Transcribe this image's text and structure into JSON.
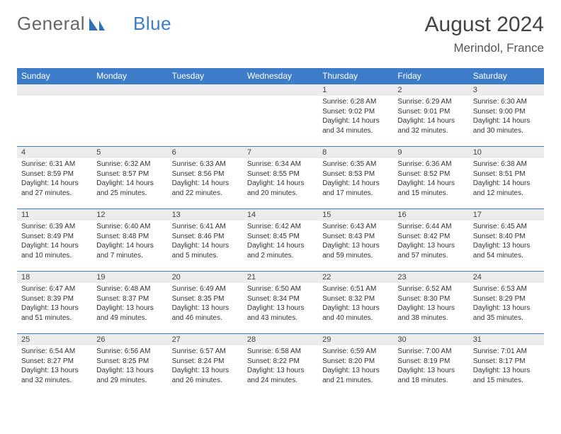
{
  "logo": {
    "text1": "General",
    "text2": "Blue"
  },
  "title": "August 2024",
  "location": "Merindol, France",
  "colors": {
    "accent": "#3d7cc9",
    "band": "#ececec",
    "text": "#333333",
    "bg": "#ffffff"
  },
  "weekdays": [
    "Sunday",
    "Monday",
    "Tuesday",
    "Wednesday",
    "Thursday",
    "Friday",
    "Saturday"
  ],
  "weeks": [
    [
      null,
      null,
      null,
      null,
      {
        "n": "1",
        "sr": "6:28 AM",
        "ss": "9:02 PM",
        "dl": "14 hours and 34 minutes."
      },
      {
        "n": "2",
        "sr": "6:29 AM",
        "ss": "9:01 PM",
        "dl": "14 hours and 32 minutes."
      },
      {
        "n": "3",
        "sr": "6:30 AM",
        "ss": "9:00 PM",
        "dl": "14 hours and 30 minutes."
      }
    ],
    [
      {
        "n": "4",
        "sr": "6:31 AM",
        "ss": "8:59 PM",
        "dl": "14 hours and 27 minutes."
      },
      {
        "n": "5",
        "sr": "6:32 AM",
        "ss": "8:57 PM",
        "dl": "14 hours and 25 minutes."
      },
      {
        "n": "6",
        "sr": "6:33 AM",
        "ss": "8:56 PM",
        "dl": "14 hours and 22 minutes."
      },
      {
        "n": "7",
        "sr": "6:34 AM",
        "ss": "8:55 PM",
        "dl": "14 hours and 20 minutes."
      },
      {
        "n": "8",
        "sr": "6:35 AM",
        "ss": "8:53 PM",
        "dl": "14 hours and 17 minutes."
      },
      {
        "n": "9",
        "sr": "6:36 AM",
        "ss": "8:52 PM",
        "dl": "14 hours and 15 minutes."
      },
      {
        "n": "10",
        "sr": "6:38 AM",
        "ss": "8:51 PM",
        "dl": "14 hours and 12 minutes."
      }
    ],
    [
      {
        "n": "11",
        "sr": "6:39 AM",
        "ss": "8:49 PM",
        "dl": "14 hours and 10 minutes."
      },
      {
        "n": "12",
        "sr": "6:40 AM",
        "ss": "8:48 PM",
        "dl": "14 hours and 7 minutes."
      },
      {
        "n": "13",
        "sr": "6:41 AM",
        "ss": "8:46 PM",
        "dl": "14 hours and 5 minutes."
      },
      {
        "n": "14",
        "sr": "6:42 AM",
        "ss": "8:45 PM",
        "dl": "14 hours and 2 minutes."
      },
      {
        "n": "15",
        "sr": "6:43 AM",
        "ss": "8:43 PM",
        "dl": "13 hours and 59 minutes."
      },
      {
        "n": "16",
        "sr": "6:44 AM",
        "ss": "8:42 PM",
        "dl": "13 hours and 57 minutes."
      },
      {
        "n": "17",
        "sr": "6:45 AM",
        "ss": "8:40 PM",
        "dl": "13 hours and 54 minutes."
      }
    ],
    [
      {
        "n": "18",
        "sr": "6:47 AM",
        "ss": "8:39 PM",
        "dl": "13 hours and 51 minutes."
      },
      {
        "n": "19",
        "sr": "6:48 AM",
        "ss": "8:37 PM",
        "dl": "13 hours and 49 minutes."
      },
      {
        "n": "20",
        "sr": "6:49 AM",
        "ss": "8:35 PM",
        "dl": "13 hours and 46 minutes."
      },
      {
        "n": "21",
        "sr": "6:50 AM",
        "ss": "8:34 PM",
        "dl": "13 hours and 43 minutes."
      },
      {
        "n": "22",
        "sr": "6:51 AM",
        "ss": "8:32 PM",
        "dl": "13 hours and 40 minutes."
      },
      {
        "n": "23",
        "sr": "6:52 AM",
        "ss": "8:30 PM",
        "dl": "13 hours and 38 minutes."
      },
      {
        "n": "24",
        "sr": "6:53 AM",
        "ss": "8:29 PM",
        "dl": "13 hours and 35 minutes."
      }
    ],
    [
      {
        "n": "25",
        "sr": "6:54 AM",
        "ss": "8:27 PM",
        "dl": "13 hours and 32 minutes."
      },
      {
        "n": "26",
        "sr": "6:56 AM",
        "ss": "8:25 PM",
        "dl": "13 hours and 29 minutes."
      },
      {
        "n": "27",
        "sr": "6:57 AM",
        "ss": "8:24 PM",
        "dl": "13 hours and 26 minutes."
      },
      {
        "n": "28",
        "sr": "6:58 AM",
        "ss": "8:22 PM",
        "dl": "13 hours and 24 minutes."
      },
      {
        "n": "29",
        "sr": "6:59 AM",
        "ss": "8:20 PM",
        "dl": "13 hours and 21 minutes."
      },
      {
        "n": "30",
        "sr": "7:00 AM",
        "ss": "8:19 PM",
        "dl": "13 hours and 18 minutes."
      },
      {
        "n": "31",
        "sr": "7:01 AM",
        "ss": "8:17 PM",
        "dl": "13 hours and 15 minutes."
      }
    ]
  ],
  "labels": {
    "sunrise": "Sunrise: ",
    "sunset": "Sunset: ",
    "daylight": "Daylight: "
  }
}
